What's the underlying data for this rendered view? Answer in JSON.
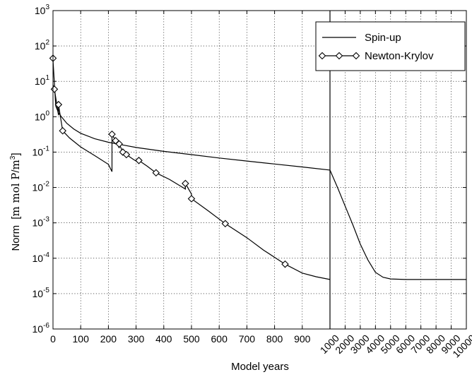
{
  "chart_data": {
    "type": "line",
    "title": "",
    "xlabel": "Model years",
    "ylabel": "Norm",
    "ylabel_unit_num": "m mol P",
    "ylabel_unit_den": "m",
    "ylabel_unit_exp": "3",
    "y_scale": "log",
    "ylim": [
      1e-06,
      1000
    ],
    "y_ticks": [
      {
        "value": 1e-06,
        "base": "10",
        "exp": "-6"
      },
      {
        "value": 1e-05,
        "base": "10",
        "exp": "-5"
      },
      {
        "value": 0.0001,
        "base": "10",
        "exp": "-4"
      },
      {
        "value": 0.001,
        "base": "10",
        "exp": "-3"
      },
      {
        "value": 0.01,
        "base": "10",
        "exp": "-2"
      },
      {
        "value": 0.1,
        "base": "10",
        "exp": "-1"
      },
      {
        "value": 1,
        "base": "10",
        "exp": "0"
      },
      {
        "value": 10,
        "base": "10",
        "exp": "1"
      },
      {
        "value": 100,
        "base": "10",
        "exp": "2"
      },
      {
        "value": 1000,
        "base": "10",
        "exp": "3"
      }
    ],
    "x_axis_segments": [
      {
        "xlim": [
          0,
          1000
        ],
        "ticks": [
          "0",
          "100",
          "200",
          "300",
          "400",
          "500",
          "600",
          "700",
          "800",
          "900"
        ],
        "tick_values": [
          0,
          100,
          200,
          300,
          400,
          500,
          600,
          700,
          800,
          900
        ],
        "rotated": false
      },
      {
        "xlim": [
          1000,
          10000
        ],
        "ticks": [
          "1000",
          "2000",
          "3000",
          "4000",
          "5000",
          "6000",
          "7000",
          "8000",
          "9000",
          "10000"
        ],
        "tick_values": [
          1000,
          2000,
          3000,
          4000,
          5000,
          6000,
          7000,
          8000,
          9000,
          10000
        ],
        "rotated": true
      }
    ],
    "grid": true,
    "legend_position": "top-right",
    "series": [
      {
        "name": "Spin-up",
        "marker": "none",
        "x": [
          0,
          10,
          20,
          30,
          50,
          75,
          100,
          150,
          200,
          250,
          300,
          400,
          500,
          600,
          700,
          800,
          900,
          1000,
          1500,
          2000,
          2500,
          3000,
          3500,
          4000,
          4500,
          5000,
          5500,
          6000,
          7000,
          8000,
          9000,
          10000
        ],
        "y": [
          40,
          2.0,
          1.3,
          1.0,
          0.65,
          0.45,
          0.34,
          0.24,
          0.19,
          0.16,
          0.135,
          0.105,
          0.085,
          0.068,
          0.056,
          0.046,
          0.038,
          0.031,
          0.01,
          0.003,
          0.0009,
          0.00025,
          9e-05,
          4e-05,
          2.9e-05,
          2.6e-05,
          2.55e-05,
          2.5e-05,
          2.5e-05,
          2.5e-05,
          2.5e-05,
          2.5e-05
        ]
      },
      {
        "name": "Newton-Krylov",
        "marker": "diamond",
        "x": [
          0,
          5,
          5,
          20,
          20,
          35,
          35,
          60,
          100,
          150,
          200,
          213,
          213,
          226,
          226,
          239,
          239,
          252,
          252,
          265,
          265,
          290,
          310,
          310,
          340,
          372,
          372,
          420,
          478,
          478,
          500,
          500,
          560,
          622,
          622,
          700,
          760,
          838,
          838,
          900,
          950,
          1000
        ],
        "y": [
          8,
          6,
          6,
          1.1,
          2.2,
          0.4,
          0.4,
          0.25,
          0.14,
          0.08,
          0.045,
          0.028,
          0.32,
          0.21,
          0.21,
          0.13,
          0.17,
          0.1,
          0.1,
          0.085,
          0.085,
          0.062,
          0.05,
          0.058,
          0.04,
          0.026,
          0.026,
          0.017,
          0.009,
          0.013,
          0.0065,
          0.0048,
          0.0022,
          0.00095,
          0.00095,
          0.00038,
          0.00017,
          6.8e-05,
          6.8e-05,
          3.8e-05,
          3e-05,
          2.5e-05
        ],
        "marker_x": [
          0,
          5,
          20,
          35,
          213,
          226,
          239,
          252,
          265,
          310,
          372,
          478,
          500,
          622,
          838
        ],
        "marker_y": [
          45,
          6,
          2.2,
          0.4,
          0.32,
          0.21,
          0.17,
          0.1,
          0.085,
          0.058,
          0.026,
          0.013,
          0.0048,
          0.00095,
          6.8e-05
        ]
      }
    ]
  }
}
